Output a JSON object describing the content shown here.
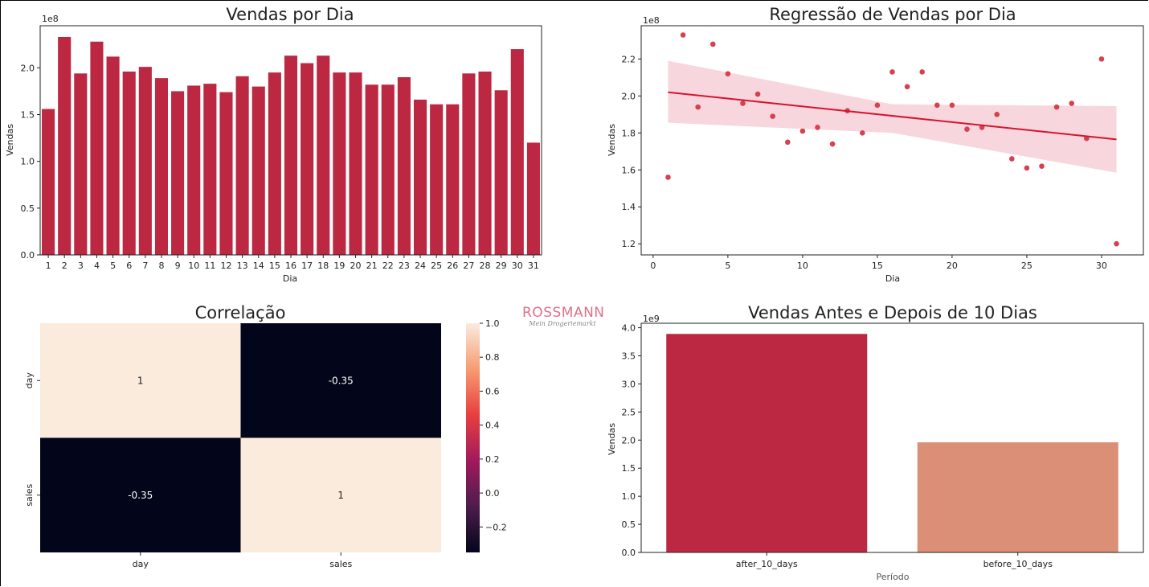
{
  "colors": {
    "bar": "#bc2841",
    "scatter": "#d6404f",
    "reg_line": "#d6142f",
    "band": "#f6ccd4",
    "after_bar": "#bc2841",
    "before_bar": "#da8f76"
  },
  "logo": {
    "brand": "ROSSMANN",
    "tagline": "Mein Drogeriemarkt"
  },
  "chart_data": [
    {
      "id": "sales_by_day",
      "type": "bar",
      "title": "Vendas por Dia",
      "xlabel": "Dia",
      "ylabel": "Vendas",
      "y_offset_label": "1e8",
      "categories": [
        "1",
        "2",
        "3",
        "4",
        "5",
        "6",
        "7",
        "8",
        "9",
        "10",
        "11",
        "12",
        "13",
        "14",
        "15",
        "16",
        "17",
        "18",
        "19",
        "20",
        "21",
        "22",
        "23",
        "24",
        "25",
        "26",
        "27",
        "28",
        "29",
        "30",
        "31"
      ],
      "values": [
        1.56,
        2.33,
        1.94,
        2.28,
        2.12,
        1.96,
        2.01,
        1.89,
        1.75,
        1.81,
        1.83,
        1.74,
        1.91,
        1.8,
        1.95,
        2.13,
        2.05,
        2.13,
        1.95,
        1.95,
        1.82,
        1.82,
        1.9,
        1.66,
        1.61,
        1.61,
        1.94,
        1.96,
        1.76,
        2.2,
        1.2
      ],
      "yticks": [
        "0.0",
        "0.5",
        "1.0",
        "1.5",
        "2.0"
      ],
      "ylim": [
        0,
        2.45
      ]
    },
    {
      "id": "sales_regression",
      "type": "scatter",
      "title": "Regressão de Vendas por Dia",
      "xlabel": "Dia",
      "ylabel": "Vendas",
      "y_offset_label": "1e8",
      "x": [
        1,
        2,
        3,
        4,
        5,
        6,
        7,
        8,
        9,
        10,
        11,
        12,
        13,
        14,
        15,
        16,
        17,
        18,
        19,
        20,
        21,
        22,
        23,
        24,
        25,
        26,
        27,
        28,
        29,
        30,
        31
      ],
      "y": [
        1.56,
        2.33,
        1.94,
        2.28,
        2.12,
        1.96,
        2.01,
        1.89,
        1.75,
        1.81,
        1.83,
        1.74,
        1.92,
        1.8,
        1.95,
        2.13,
        2.05,
        2.13,
        1.95,
        1.95,
        1.82,
        1.83,
        1.9,
        1.66,
        1.61,
        1.62,
        1.94,
        1.96,
        1.77,
        2.2,
        1.2
      ],
      "regression": {
        "x": [
          1,
          31
        ],
        "y": [
          2.02,
          1.765
        ]
      },
      "band_upper": [
        [
          1,
          2.19
        ],
        [
          16,
          1.955
        ],
        [
          31,
          1.945
        ]
      ],
      "band_lower": [
        [
          1,
          1.855
        ],
        [
          16,
          1.8
        ],
        [
          31,
          1.585
        ]
      ],
      "xticks": [
        "0",
        "5",
        "10",
        "15",
        "20",
        "25",
        "30"
      ],
      "yticks": [
        "1.2",
        "1.4",
        "1.6",
        "1.8",
        "2.0",
        "2.2"
      ],
      "xlim": [
        -0.8,
        32.8
      ],
      "ylim": [
        1.14,
        2.38
      ]
    },
    {
      "id": "correlation",
      "type": "heatmap",
      "title": "Correlação",
      "rows": [
        "day",
        "sales"
      ],
      "cols": [
        "day",
        "sales"
      ],
      "values": [
        [
          1,
          -0.35
        ],
        [
          -0.35,
          1
        ]
      ],
      "cell_labels": [
        [
          "1",
          "-0.35"
        ],
        [
          "-0.35",
          "1"
        ]
      ],
      "colorbar_ticks": [
        "1.0",
        "0.8",
        "0.6",
        "0.4",
        "0.2",
        "0.0",
        "−0.2"
      ],
      "colorbar_range": [
        -0.35,
        1.0
      ]
    },
    {
      "id": "before_after",
      "type": "bar",
      "title": "Vendas Antes e Depois de 10 Dias",
      "xlabel": "Período",
      "ylabel": "Vendas",
      "y_offset_label": "1e9",
      "categories": [
        "after_10_days",
        "before_10_days"
      ],
      "values": [
        3.89,
        1.96
      ],
      "yticks": [
        "0.0",
        "0.5",
        "1.0",
        "1.5",
        "2.0",
        "2.5",
        "3.0",
        "3.5",
        "4.0"
      ],
      "ylim": [
        0,
        4.08
      ]
    }
  ]
}
